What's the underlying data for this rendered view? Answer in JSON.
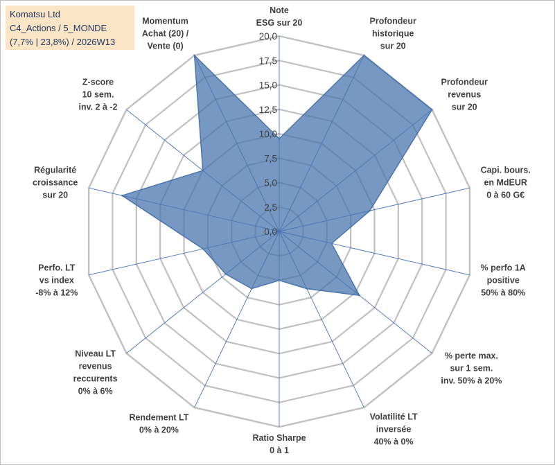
{
  "title_box": {
    "line1": "Komatsu Ltd",
    "line2": "C4_Actions / 5_MONDE",
    "line3": "(7,7% | 23,8%) / 2026W13"
  },
  "colors": {
    "fill": "#4a75ad",
    "grid": "#c0c0c0",
    "spoke": "#4472c4",
    "title_bg": "#fbe5c4"
  },
  "chart_data": {
    "type": "radar",
    "title": "",
    "rmin": 0,
    "rmax": 20,
    "tick_labels": [
      "0,0",
      "2,5",
      "5,0",
      "7,5",
      "10,0",
      "12,5",
      "15,0",
      "17,5",
      "20,0"
    ],
    "series": [
      {
        "name": "Komatsu Ltd",
        "values": [
          9.5,
          20,
          20,
          9.5,
          5.5,
          10.5,
          6.5,
          5,
          6.5,
          7,
          8,
          16.5,
          10,
          20
        ]
      }
    ],
    "categories": [
      {
        "lines": [
          "Note",
          "ESG sur 20"
        ]
      },
      {
        "lines": [
          "Profondeur",
          "historique",
          "sur 20"
        ]
      },
      {
        "lines": [
          "Profondeur",
          "revenus",
          "sur 20"
        ]
      },
      {
        "lines": [
          "Capi. bours.",
          "en MdEUR",
          "0 à 60 G€"
        ]
      },
      {
        "lines": [
          "% perfo 1A",
          "positive",
          "50% à 80%"
        ]
      },
      {
        "lines": [
          "% perte max.",
          "sur 1 sem.",
          "inv. 50% à 20%"
        ]
      },
      {
        "lines": [
          "Volatilité LT",
          "inversée",
          "40% à 0%"
        ]
      },
      {
        "lines": [
          "Ratio Sharpe",
          "0 à 1"
        ]
      },
      {
        "lines": [
          "Rendement LT",
          "0% à 20%"
        ]
      },
      {
        "lines": [
          "Niveau LT",
          "revenus",
          "reccurents",
          "0% à 6%"
        ]
      },
      {
        "lines": [
          "Perfo. LT",
          "vs index",
          "-8% à 12%"
        ]
      },
      {
        "lines": [
          "Régularité",
          "croissance",
          "sur 20"
        ]
      },
      {
        "lines": [
          "Z-score",
          "10 sem.",
          "inv. 2 à -2"
        ]
      },
      {
        "lines": [
          "Momentum",
          "Achat (20) /",
          "Vente (0)"
        ]
      }
    ]
  }
}
